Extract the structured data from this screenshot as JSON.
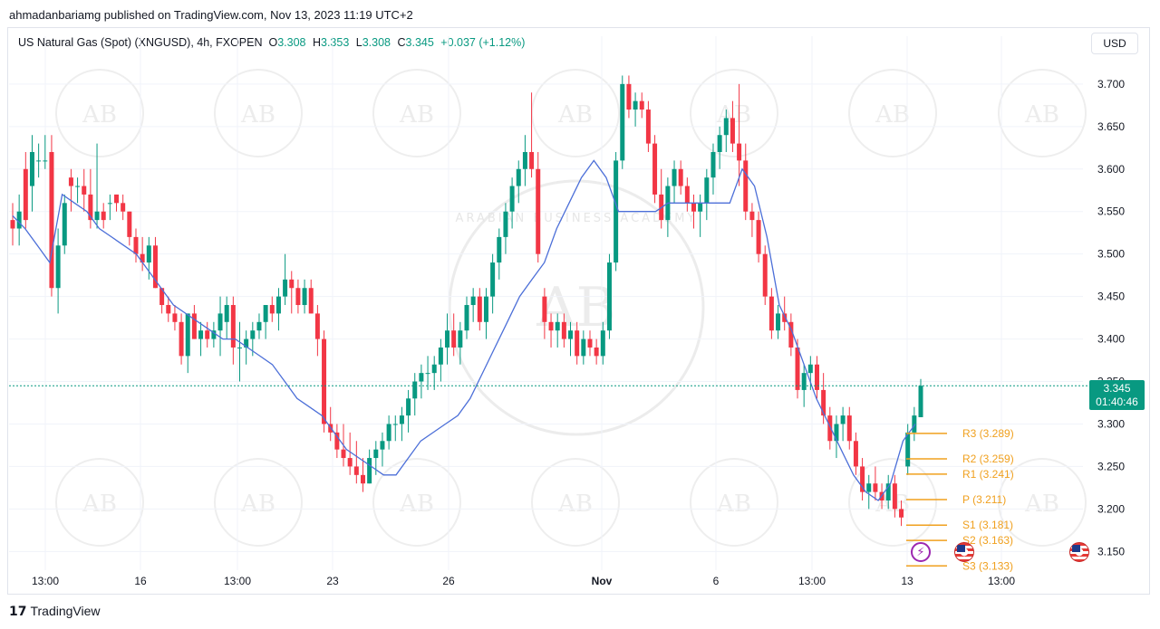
{
  "attribution": "ahmadanbariamg published on TradingView.com, Nov 13, 2023 11:19 UTC+2",
  "legend": {
    "symbol": "US Natural Gas (Spot) (XNGUSD), 4h, FXOPEN",
    "o_key": "O",
    "o_val": "3.308",
    "h_key": "H",
    "h_val": "3.353",
    "l_key": "L",
    "l_val": "3.308",
    "c_key": "C",
    "c_val": "3.345",
    "change": "+0.037 (+1.12%)"
  },
  "currency_button": "USD",
  "price_tag": {
    "price": "3.345",
    "countdown": "01:40:46"
  },
  "footer_logo": "17",
  "footer_brand": "TradingView",
  "watermark": "ARABIAN BUSINESS ACADEMY",
  "colors": {
    "up": "#089981",
    "down": "#f23645",
    "ma": "#4c6fd8",
    "pivot": "#f0a01e",
    "grid": "#f0f3fa",
    "axis_text": "#131722"
  },
  "chart_data": {
    "type": "candlestick",
    "y_ticks": [
      "3.700",
      "3.650",
      "3.600",
      "3.550",
      "3.500",
      "3.450",
      "3.400",
      "3.350",
      "3.300",
      "3.250",
      "3.200",
      "3.150"
    ],
    "ylim": [
      3.128,
      3.735
    ],
    "x_ticks": [
      "13:00",
      "16",
      "13:00",
      "23",
      "26",
      "Nov",
      "6",
      "13:00",
      "13",
      "13:00"
    ],
    "last_price": 3.345,
    "pivot_levels": [
      {
        "label": "R3",
        "value": 3.289
      },
      {
        "label": "R2",
        "value": 3.259
      },
      {
        "label": "R1",
        "value": 3.241
      },
      {
        "label": "P",
        "value": 3.211
      },
      {
        "label": "S1",
        "value": 3.181
      },
      {
        "label": "S2",
        "value": 3.163
      },
      {
        "label": "S3",
        "value": 3.133
      }
    ],
    "candles": [
      [
        3.54,
        3.56,
        3.51,
        3.53
      ],
      [
        3.53,
        3.57,
        3.51,
        3.55
      ],
      [
        3.6,
        3.62,
        3.53,
        3.54
      ],
      [
        3.58,
        3.64,
        3.55,
        3.62
      ],
      [
        3.61,
        3.63,
        3.59,
        3.61
      ],
      [
        3.61,
        3.64,
        3.6,
        3.61
      ],
      [
        3.62,
        3.64,
        3.45,
        3.46
      ],
      [
        3.46,
        3.53,
        3.43,
        3.51
      ],
      [
        3.51,
        3.57,
        3.5,
        3.56
      ],
      [
        3.59,
        3.6,
        3.55,
        3.58
      ],
      [
        3.58,
        3.59,
        3.56,
        3.58
      ],
      [
        3.58,
        3.6,
        3.55,
        3.57
      ],
      [
        3.57,
        3.6,
        3.53,
        3.54
      ],
      [
        3.54,
        3.63,
        3.53,
        3.55
      ],
      [
        3.55,
        3.56,
        3.53,
        3.54
      ],
      [
        3.56,
        3.57,
        3.54,
        3.56
      ],
      [
        3.57,
        3.57,
        3.55,
        3.56
      ],
      [
        3.56,
        3.57,
        3.54,
        3.55
      ],
      [
        3.55,
        3.55,
        3.51,
        3.52
      ],
      [
        3.52,
        3.53,
        3.49,
        3.5
      ],
      [
        3.5,
        3.52,
        3.48,
        3.49
      ],
      [
        3.49,
        3.52,
        3.47,
        3.51
      ],
      [
        3.51,
        3.52,
        3.46,
        3.46
      ],
      [
        3.46,
        3.46,
        3.43,
        3.44
      ],
      [
        3.44,
        3.45,
        3.42,
        3.43
      ],
      [
        3.43,
        3.44,
        3.41,
        3.42
      ],
      [
        3.42,
        3.43,
        3.37,
        3.38
      ],
      [
        3.38,
        3.43,
        3.36,
        3.43
      ],
      [
        3.43,
        3.44,
        3.4,
        3.4
      ],
      [
        3.4,
        3.42,
        3.38,
        3.41
      ],
      [
        3.41,
        3.42,
        3.39,
        3.4
      ],
      [
        3.4,
        3.42,
        3.39,
        3.41
      ],
      [
        3.41,
        3.45,
        3.38,
        3.43
      ],
      [
        3.42,
        3.45,
        3.4,
        3.44
      ],
      [
        3.44,
        3.45,
        3.37,
        3.39
      ],
      [
        3.39,
        3.42,
        3.35,
        3.39
      ],
      [
        3.39,
        3.41,
        3.37,
        3.4
      ],
      [
        3.4,
        3.42,
        3.38,
        3.41
      ],
      [
        3.41,
        3.43,
        3.4,
        3.42
      ],
      [
        3.42,
        3.44,
        3.4,
        3.44
      ],
      [
        3.44,
        3.45,
        3.42,
        3.43
      ],
      [
        3.43,
        3.46,
        3.41,
        3.45
      ],
      [
        3.45,
        3.5,
        3.44,
        3.47
      ],
      [
        3.47,
        3.48,
        3.43,
        3.46
      ],
      [
        3.46,
        3.47,
        3.43,
        3.44
      ],
      [
        3.44,
        3.47,
        3.43,
        3.46
      ],
      [
        3.46,
        3.47,
        3.43,
        3.43
      ],
      [
        3.43,
        3.44,
        3.38,
        3.4
      ],
      [
        3.4,
        3.41,
        3.29,
        3.3
      ],
      [
        3.3,
        3.32,
        3.28,
        3.29
      ],
      [
        3.29,
        3.3,
        3.26,
        3.27
      ],
      [
        3.27,
        3.3,
        3.25,
        3.26
      ],
      [
        3.26,
        3.29,
        3.24,
        3.25
      ],
      [
        3.25,
        3.28,
        3.23,
        3.24
      ],
      [
        3.24,
        3.26,
        3.22,
        3.23
      ],
      [
        3.23,
        3.27,
        3.23,
        3.26
      ],
      [
        3.26,
        3.28,
        3.24,
        3.27
      ],
      [
        3.27,
        3.29,
        3.25,
        3.28
      ],
      [
        3.28,
        3.31,
        3.27,
        3.3
      ],
      [
        3.3,
        3.31,
        3.28,
        3.3
      ],
      [
        3.3,
        3.32,
        3.28,
        3.31
      ],
      [
        3.31,
        3.34,
        3.29,
        3.33
      ],
      [
        3.33,
        3.36,
        3.31,
        3.35
      ],
      [
        3.35,
        3.37,
        3.33,
        3.36
      ],
      [
        3.36,
        3.38,
        3.34,
        3.36
      ],
      [
        3.36,
        3.38,
        3.34,
        3.37
      ],
      [
        3.37,
        3.4,
        3.35,
        3.39
      ],
      [
        3.39,
        3.43,
        3.37,
        3.41
      ],
      [
        3.41,
        3.43,
        3.38,
        3.39
      ],
      [
        3.39,
        3.42,
        3.37,
        3.41
      ],
      [
        3.41,
        3.45,
        3.4,
        3.44
      ],
      [
        3.44,
        3.46,
        3.42,
        3.45
      ],
      [
        3.45,
        3.46,
        3.41,
        3.42
      ],
      [
        3.42,
        3.46,
        3.4,
        3.45
      ],
      [
        3.45,
        3.5,
        3.43,
        3.49
      ],
      [
        3.49,
        3.53,
        3.47,
        3.52
      ],
      [
        3.52,
        3.56,
        3.5,
        3.55
      ],
      [
        3.55,
        3.59,
        3.53,
        3.58
      ],
      [
        3.58,
        3.61,
        3.56,
        3.6
      ],
      [
        3.6,
        3.64,
        3.58,
        3.62
      ],
      [
        3.62,
        3.69,
        3.59,
        3.6
      ],
      [
        3.6,
        3.62,
        3.49,
        3.5
      ],
      [
        3.45,
        3.46,
        3.4,
        3.42
      ],
      [
        3.42,
        3.43,
        3.39,
        3.41
      ],
      [
        3.41,
        3.43,
        3.39,
        3.42
      ],
      [
        3.42,
        3.43,
        3.39,
        3.4
      ],
      [
        3.4,
        3.42,
        3.38,
        3.41
      ],
      [
        3.41,
        3.42,
        3.37,
        3.38
      ],
      [
        3.38,
        3.41,
        3.37,
        3.4
      ],
      [
        3.4,
        3.41,
        3.38,
        3.39
      ],
      [
        3.39,
        3.4,
        3.37,
        3.38
      ],
      [
        3.38,
        3.42,
        3.37,
        3.41
      ],
      [
        3.41,
        3.5,
        3.4,
        3.49
      ],
      [
        3.49,
        3.62,
        3.48,
        3.61
      ],
      [
        3.61,
        3.71,
        3.6,
        3.7
      ],
      [
        3.7,
        3.71,
        3.66,
        3.67
      ],
      [
        3.67,
        3.69,
        3.65,
        3.68
      ],
      [
        3.68,
        3.69,
        3.66,
        3.67
      ],
      [
        3.67,
        3.68,
        3.62,
        3.63
      ],
      [
        3.63,
        3.64,
        3.56,
        3.57
      ],
      [
        3.57,
        3.6,
        3.53,
        3.54
      ],
      [
        3.54,
        3.59,
        3.52,
        3.58
      ],
      [
        3.58,
        3.61,
        3.56,
        3.6
      ],
      [
        3.6,
        3.61,
        3.57,
        3.58
      ],
      [
        3.58,
        3.59,
        3.55,
        3.56
      ],
      [
        3.56,
        3.57,
        3.53,
        3.55
      ],
      [
        3.55,
        3.57,
        3.52,
        3.56
      ],
      [
        3.56,
        3.6,
        3.54,
        3.59
      ],
      [
        3.59,
        3.63,
        3.57,
        3.62
      ],
      [
        3.62,
        3.65,
        3.6,
        3.64
      ],
      [
        3.64,
        3.67,
        3.62,
        3.66
      ],
      [
        3.66,
        3.68,
        3.62,
        3.63
      ],
      [
        3.63,
        3.7,
        3.58,
        3.61
      ],
      [
        3.61,
        3.63,
        3.54,
        3.55
      ],
      [
        3.55,
        3.56,
        3.52,
        3.54
      ],
      [
        3.54,
        3.55,
        3.49,
        3.5
      ],
      [
        3.5,
        3.51,
        3.44,
        3.45
      ],
      [
        3.45,
        3.46,
        3.4,
        3.41
      ],
      [
        3.41,
        3.44,
        3.4,
        3.43
      ],
      [
        3.43,
        3.45,
        3.41,
        3.42
      ],
      [
        3.42,
        3.43,
        3.38,
        3.39
      ],
      [
        3.39,
        3.4,
        3.33,
        3.34
      ],
      [
        3.34,
        3.37,
        3.32,
        3.36
      ],
      [
        3.36,
        3.38,
        3.34,
        3.37
      ],
      [
        3.37,
        3.38,
        3.33,
        3.34
      ],
      [
        3.34,
        3.36,
        3.3,
        3.31
      ],
      [
        3.31,
        3.32,
        3.27,
        3.28
      ],
      [
        3.28,
        3.31,
        3.26,
        3.3
      ],
      [
        3.3,
        3.32,
        3.28,
        3.31
      ],
      [
        3.31,
        3.32,
        3.27,
        3.28
      ],
      [
        3.28,
        3.29,
        3.24,
        3.25
      ],
      [
        3.25,
        3.26,
        3.21,
        3.22
      ],
      [
        3.22,
        3.24,
        3.2,
        3.23
      ],
      [
        3.23,
        3.25,
        3.21,
        3.22
      ],
      [
        3.22,
        3.23,
        3.2,
        3.21
      ],
      [
        3.21,
        3.24,
        3.2,
        3.23
      ],
      [
        3.23,
        3.24,
        3.19,
        3.2
      ],
      [
        3.2,
        3.21,
        3.18,
        3.19
      ],
      [
        3.25,
        3.3,
        3.24,
        3.29
      ],
      [
        3.29,
        3.32,
        3.28,
        3.31
      ],
      [
        3.308,
        3.353,
        3.308,
        3.345
      ]
    ],
    "ma_points": [
      [
        3.545,
        3.53,
        3.51,
        3.49,
        3.57,
        3.56,
        3.55,
        3.53,
        3.52,
        3.51,
        3.5,
        3.48,
        3.46,
        3.44,
        3.43,
        3.42,
        3.41,
        3.4,
        3.4,
        3.39,
        3.38,
        3.37,
        3.35,
        3.33,
        3.32,
        3.31,
        3.29,
        3.27,
        3.26,
        3.25,
        3.24,
        3.24,
        3.26,
        3.28,
        3.29,
        3.3,
        3.31,
        3.33,
        3.36,
        3.39,
        3.42,
        3.45,
        3.47,
        3.49,
        3.53,
        3.56,
        3.59,
        3.61,
        3.59,
        3.55,
        3.55,
        3.55,
        3.55,
        3.56,
        3.56,
        3.56,
        3.56,
        3.56,
        3.56,
        3.6,
        3.58,
        3.52,
        3.44,
        3.41,
        3.37,
        3.33,
        3.3,
        3.27,
        3.24,
        3.22,
        3.21,
        3.23,
        3.28,
        3.3
      ]
    ]
  }
}
